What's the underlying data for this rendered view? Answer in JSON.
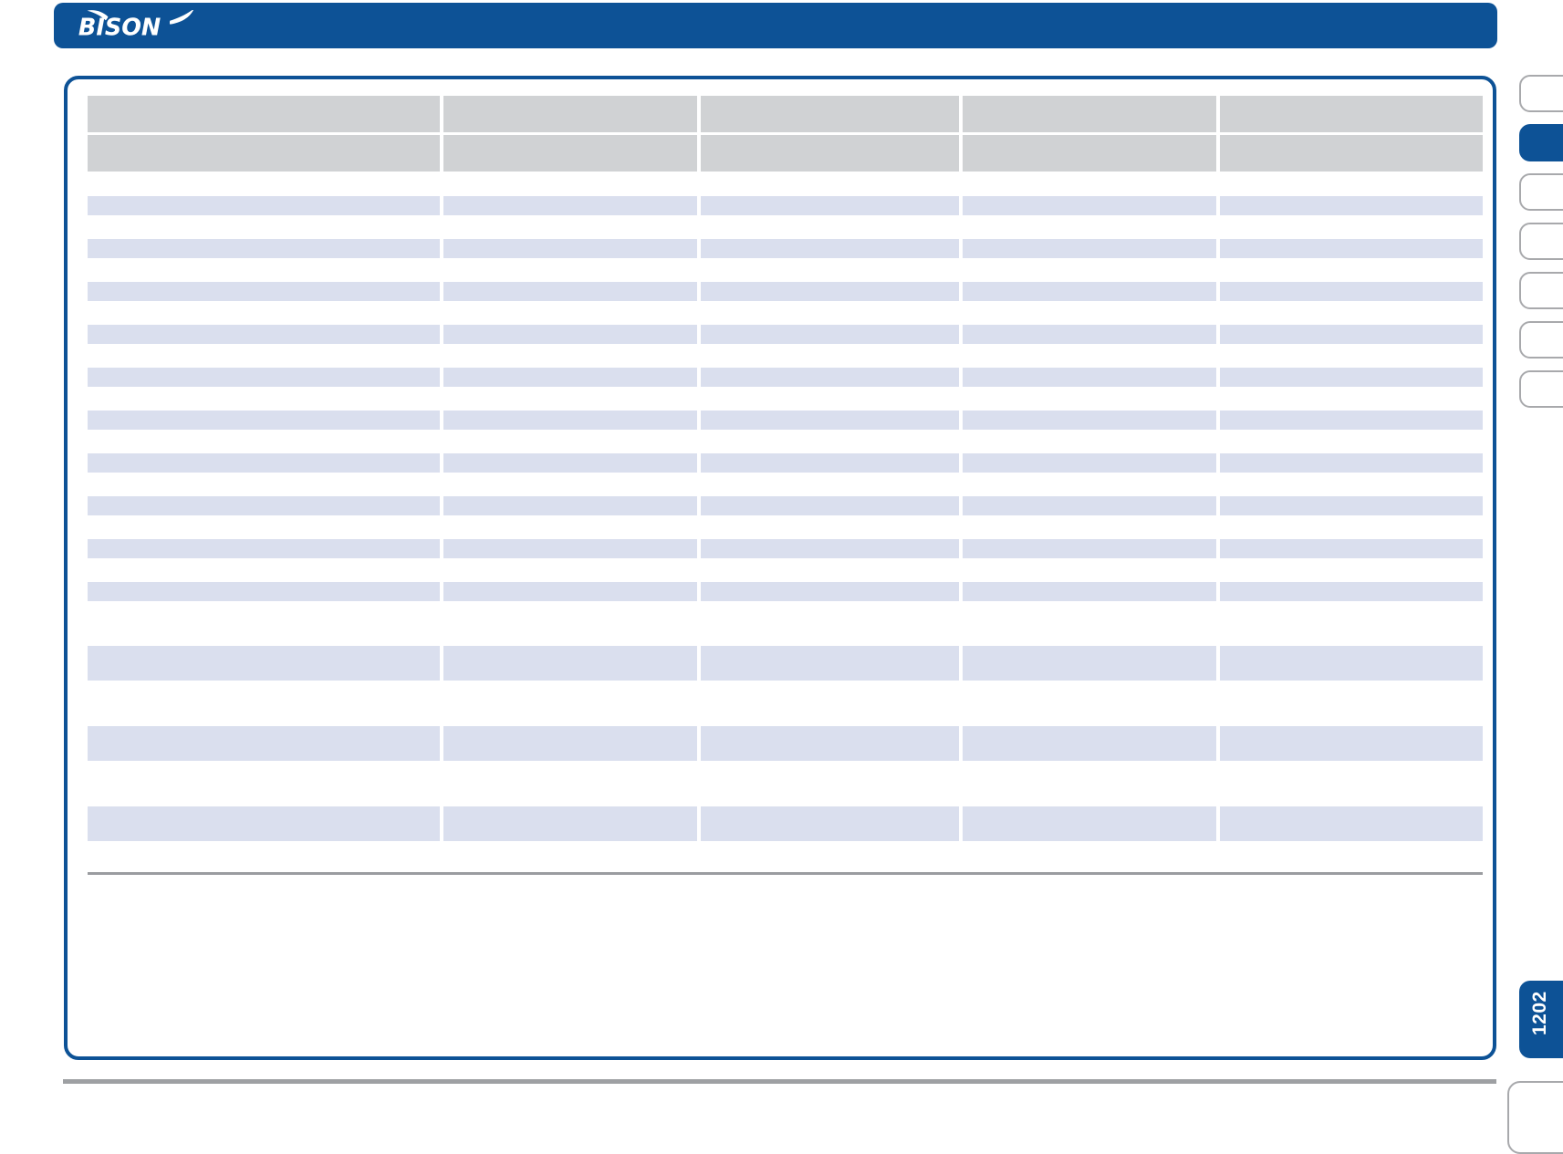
{
  "brand": {
    "logo_text": "BISON",
    "logo_icons": [
      "bison-horn-left-icon",
      "bison-horn-right-icon"
    ]
  },
  "page": {
    "number": "1202"
  },
  "colors": {
    "accent_blue": "#0D5296",
    "header_gray": "#D0D2D4",
    "row_blue": "#DADFEE",
    "tab_border_gray": "#A8A9AC",
    "divider_gray": "#9A9CA0",
    "footer_line_gray": "#9EA0A3"
  },
  "catalog_table": {
    "columns": [
      "",
      "",
      "",
      "",
      ""
    ],
    "header_rows": [
      {
        "cells": [
          "",
          "",
          "",
          "",
          ""
        ]
      },
      {
        "cells": [
          "",
          "",
          "",
          "",
          ""
        ]
      }
    ],
    "body_rows": [
      {
        "size": "regular",
        "cells": [
          "",
          "",
          "",
          "",
          ""
        ]
      },
      {
        "size": "regular",
        "cells": [
          "",
          "",
          "",
          "",
          ""
        ]
      },
      {
        "size": "regular",
        "cells": [
          "",
          "",
          "",
          "",
          ""
        ]
      },
      {
        "size": "regular",
        "cells": [
          "",
          "",
          "",
          "",
          ""
        ]
      },
      {
        "size": "regular",
        "cells": [
          "",
          "",
          "",
          "",
          ""
        ]
      },
      {
        "size": "regular",
        "cells": [
          "",
          "",
          "",
          "",
          ""
        ]
      },
      {
        "size": "regular",
        "cells": [
          "",
          "",
          "",
          "",
          ""
        ]
      },
      {
        "size": "regular",
        "cells": [
          "",
          "",
          "",
          "",
          ""
        ]
      },
      {
        "size": "regular",
        "cells": [
          "",
          "",
          "",
          "",
          ""
        ]
      },
      {
        "size": "regular",
        "cells": [
          "",
          "",
          "",
          "",
          ""
        ]
      },
      {
        "size": "tall",
        "cells": [
          "",
          "",
          "",
          "",
          ""
        ]
      },
      {
        "size": "tall",
        "cells": [
          "",
          "",
          "",
          "",
          ""
        ]
      },
      {
        "size": "tall",
        "cells": [
          "",
          "",
          "",
          "",
          ""
        ]
      }
    ],
    "has_bottom_divider": true
  },
  "side_tabs": {
    "items": [
      {
        "active": false
      },
      {
        "active": true
      },
      {
        "active": false
      },
      {
        "active": false
      },
      {
        "active": false
      },
      {
        "active": false
      },
      {
        "active": false
      }
    ]
  }
}
